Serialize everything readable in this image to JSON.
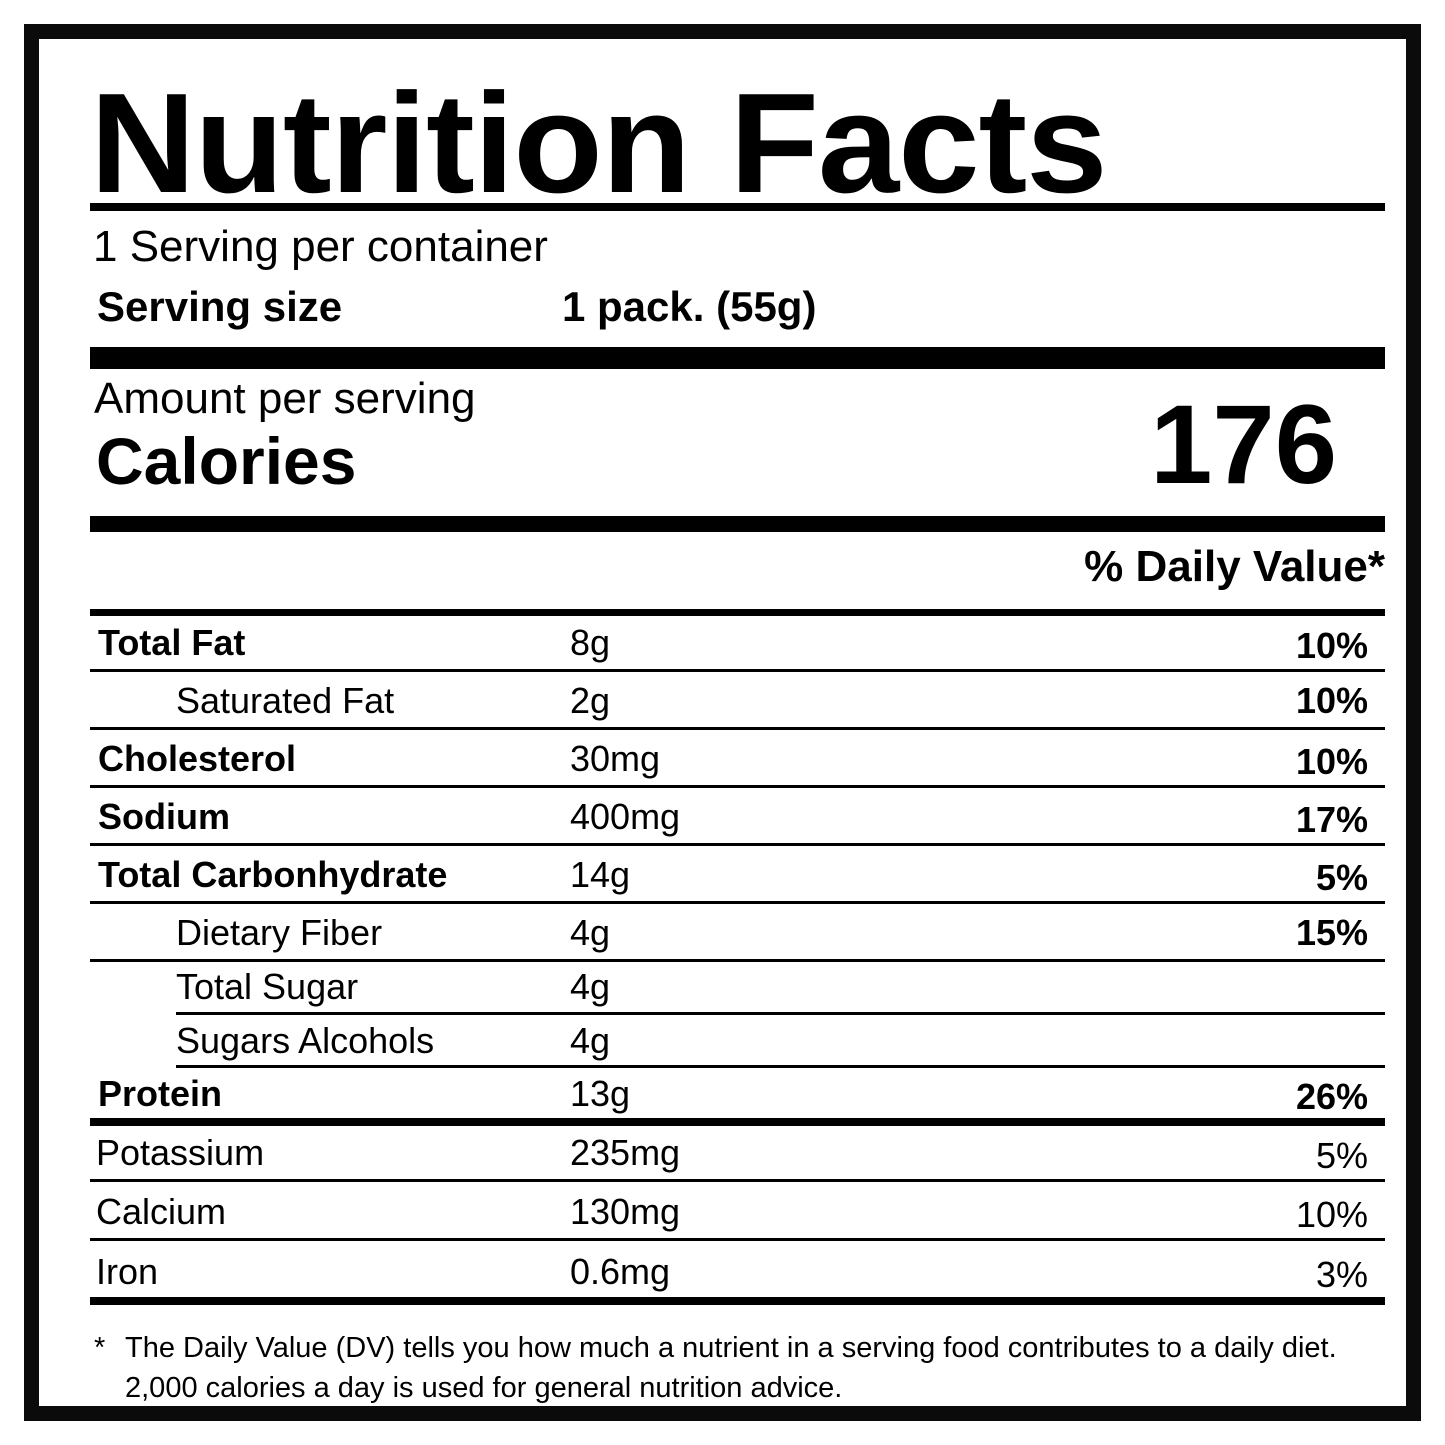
{
  "header": {
    "title": "Nutrition Facts",
    "servings_per_container": "1 Serving per container",
    "serving_size_label": "Serving size",
    "serving_size_value": "1 pack. (55g)"
  },
  "calories": {
    "amount_label": "Amount per serving",
    "label": "Calories",
    "value": "176"
  },
  "daily_value_header": "% Daily Value*",
  "nutrients": [
    {
      "name": "Total Fat",
      "amount": "8g",
      "dv": "10%"
    },
    {
      "name": "Saturated Fat",
      "amount": "2g",
      "dv": "10%"
    },
    {
      "name": "Cholesterol",
      "amount": "30mg",
      "dv": "10%"
    },
    {
      "name": "Sodium",
      "amount": "400mg",
      "dv": "17%"
    },
    {
      "name": "Total Carbonhydrate",
      "amount": "14g",
      "dv": "5%"
    },
    {
      "name": "Dietary Fiber",
      "amount": "4g",
      "dv": "15%"
    },
    {
      "name": "Total Sugar",
      "amount": "4g",
      "dv": ""
    },
    {
      "name": "Sugars Alcohols",
      "amount": "4g",
      "dv": ""
    },
    {
      "name": "Protein",
      "amount": "13g",
      "dv": "26%"
    }
  ],
  "minerals": [
    {
      "name": "Potassium",
      "amount": "235mg",
      "dv": "5%"
    },
    {
      "name": "Calcium",
      "amount": "130mg",
      "dv": "10%"
    },
    {
      "name": "Iron",
      "amount": "0.6mg",
      "dv": "3%"
    }
  ],
  "footnote": {
    "marker": "*",
    "text": "The  Daily Value (DV) tells you how much a nutrient in a serving food contributes to a daily diet. 2,000 calories a day is used for general nutrition advice."
  }
}
